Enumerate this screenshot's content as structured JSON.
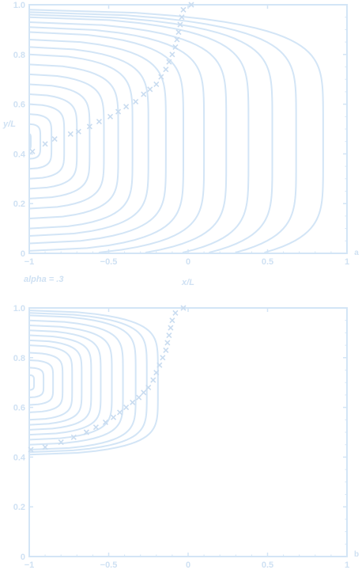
{
  "colors": {
    "line": "#d3e5f6",
    "marker": "#c9dcf0",
    "text": "#cfe1f3"
  },
  "chart_data": [
    {
      "type": "line",
      "panel_letter": "a",
      "xlabel": "x/L",
      "ylabel": "y/L",
      "annotation": "alpha = .3",
      "xlim": [
        -1,
        1
      ],
      "ylim": [
        0,
        1
      ],
      "x_ticks": [
        -1,
        -0.5,
        0,
        0.5,
        1
      ],
      "x_tick_labels": [
        "−1",
        "−0.5",
        "0",
        "0.5",
        "1"
      ],
      "y_ticks": [
        0,
        0.2,
        0.4,
        0.6,
        0.8,
        1
      ],
      "y_tick_labels": [
        "0",
        "0.2",
        "0.4",
        "0.6",
        "0.8",
        "1.0"
      ],
      "grid": false,
      "series": {
        "kind": "streamlines",
        "center_y": 0.45,
        "max_y": 1.0,
        "contours": [
          {
            "apex_x": -0.99,
            "half_width": 0.03
          },
          {
            "apex_x": -0.93,
            "half_width": 0.07
          },
          {
            "apex_x": -0.86,
            "half_width": 0.11
          },
          {
            "apex_x": -0.78,
            "half_width": 0.15
          },
          {
            "apex_x": -0.7,
            "half_width": 0.19
          },
          {
            "apex_x": -0.62,
            "half_width": 0.23
          },
          {
            "apex_x": -0.53,
            "half_width": 0.27
          },
          {
            "apex_x": -0.44,
            "half_width": 0.31
          },
          {
            "apex_x": -0.35,
            "half_width": 0.35
          },
          {
            "apex_x": -0.25,
            "half_width": 0.38
          },
          {
            "apex_x": -0.14,
            "half_width": 0.41
          },
          {
            "apex_x": -0.03,
            "half_width": 0.44
          },
          {
            "apex_x": 0.1,
            "half_width": 0.46
          },
          {
            "apex_x": 0.24,
            "half_width": 0.48
          },
          {
            "apex_x": 0.38,
            "half_width": 0.5
          },
          {
            "apex_x": 0.53,
            "half_width": 0.51
          },
          {
            "apex_x": 0.68,
            "half_width": 0.52
          },
          {
            "apex_x": 0.85,
            "half_width": 0.53
          }
        ],
        "markers": {
          "symbol": "x",
          "points": [
            [
              -0.98,
              0.41
            ],
            [
              -0.9,
              0.44
            ],
            [
              -0.84,
              0.46
            ],
            [
              -0.74,
              0.48
            ],
            [
              -0.69,
              0.49
            ],
            [
              -0.62,
              0.51
            ],
            [
              -0.56,
              0.53
            ],
            [
              -0.49,
              0.55
            ],
            [
              -0.44,
              0.57
            ],
            [
              -0.39,
              0.59
            ],
            [
              -0.33,
              0.61
            ],
            [
              -0.28,
              0.64
            ],
            [
              -0.24,
              0.66
            ],
            [
              -0.2,
              0.68
            ],
            [
              -0.17,
              0.71
            ],
            [
              -0.14,
              0.74
            ],
            [
              -0.12,
              0.77
            ],
            [
              -0.1,
              0.8
            ],
            [
              -0.08,
              0.83
            ],
            [
              -0.07,
              0.86
            ],
            [
              -0.06,
              0.89
            ],
            [
              -0.05,
              0.92
            ],
            [
              -0.04,
              0.95
            ],
            [
              -0.03,
              0.98
            ],
            [
              0.02,
              1.0
            ]
          ]
        }
      }
    },
    {
      "type": "line",
      "panel_letter": "b",
      "xlim": [
        -1,
        1
      ],
      "ylim": [
        0,
        1
      ],
      "x_ticks": [
        -1,
        -0.5,
        0,
        0.5,
        1
      ],
      "x_tick_labels": [
        "−1",
        "−0.5",
        "0",
        "0.5",
        "1"
      ],
      "y_ticks": [
        0,
        0.2,
        0.4,
        0.6,
        0.8,
        1
      ],
      "y_tick_labels": [
        "0",
        "0.2",
        "0.4",
        "0.6",
        "0.8",
        "1.0"
      ],
      "grid": false,
      "series": {
        "kind": "streamlines",
        "center_y": 0.7,
        "max_y": 1.0,
        "contours": [
          {
            "apex_x": -0.97,
            "half_width": 0.03
          },
          {
            "apex_x": -0.91,
            "half_width": 0.06
          },
          {
            "apex_x": -0.85,
            "half_width": 0.09
          },
          {
            "apex_x": -0.79,
            "half_width": 0.12
          },
          {
            "apex_x": -0.73,
            "half_width": 0.15
          },
          {
            "apex_x": -0.67,
            "half_width": 0.17
          },
          {
            "apex_x": -0.61,
            "half_width": 0.19
          },
          {
            "apex_x": -0.55,
            "half_width": 0.21
          },
          {
            "apex_x": -0.48,
            "half_width": 0.23
          },
          {
            "apex_x": -0.41,
            "half_width": 0.25
          },
          {
            "apex_x": -0.33,
            "half_width": 0.27
          },
          {
            "apex_x": -0.26,
            "half_width": 0.28
          },
          {
            "apex_x": -0.19,
            "half_width": 0.29
          }
        ],
        "markers": {
          "symbol": "x",
          "points": [
            [
              -0.99,
              0.43
            ],
            [
              -0.9,
              0.44
            ],
            [
              -0.8,
              0.46
            ],
            [
              -0.72,
              0.48
            ],
            [
              -0.64,
              0.5
            ],
            [
              -0.58,
              0.52
            ],
            [
              -0.52,
              0.54
            ],
            [
              -0.47,
              0.56
            ],
            [
              -0.43,
              0.58
            ],
            [
              -0.39,
              0.6
            ],
            [
              -0.35,
              0.62
            ],
            [
              -0.31,
              0.64
            ],
            [
              -0.28,
              0.66
            ],
            [
              -0.25,
              0.68
            ],
            [
              -0.22,
              0.71
            ],
            [
              -0.2,
              0.74
            ],
            [
              -0.18,
              0.77
            ],
            [
              -0.16,
              0.8
            ],
            [
              -0.14,
              0.83
            ],
            [
              -0.13,
              0.86
            ],
            [
              -0.12,
              0.89
            ],
            [
              -0.11,
              0.92
            ],
            [
              -0.1,
              0.95
            ],
            [
              -0.08,
              0.98
            ],
            [
              -0.03,
              1.0
            ]
          ]
        }
      }
    }
  ]
}
